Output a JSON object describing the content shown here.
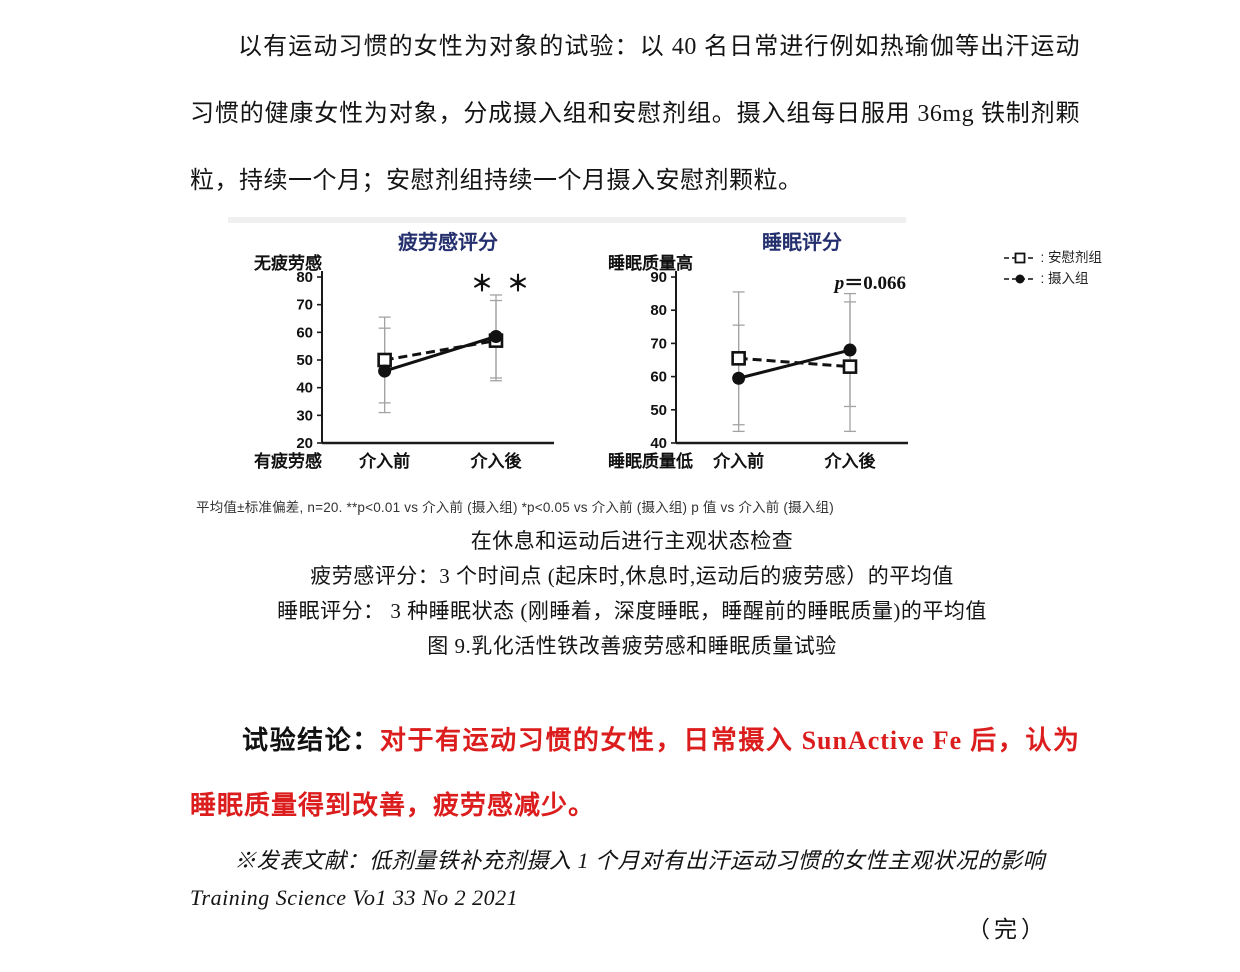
{
  "page": {
    "intro": "以有运动习惯的女性为对象的试验：以 40 名日常进行例如热瑜伽等出汗运动习惯的健康女性为对象，分成摄入组和安慰剂组。摄入组每日服用 36mg 铁制剂颗粒，持续一个月；安慰剂组持续一个月摄入安慰剂颗粒。",
    "figure": {
      "footnote": "平均值±标准偏差, n=20. **p<0.01 vs 介入前  (摄入组)   *p<0.05 vs 介入前  (摄入组)   p 值 vs 介入前  (摄入组)",
      "captions": [
        "在休息和运动后进行主观状态检查",
        "疲劳感评分：3 个时间点 (起床时,休息时,运动后的疲劳感）的平均值",
        "睡眠评分： 3 种睡眠状态 (刚睡着，深度睡眠，睡醒前的睡眠质量)的平均值",
        "图 9.乳化活性铁改善疲劳感和睡眠质量试验"
      ]
    },
    "conclusion": {
      "label": "试验结论：",
      "text": "对于有运动习惯的女性，日常摄入 SunActive Fe 后，认为睡眠质量得到改善，疲劳感减少。"
    },
    "reference": {
      "line1": "※发表文献：低剂量铁补充剂摄入 1 个月对有出汗运动习惯的女性主观状况的影响",
      "line2": "Training Science Vo1 33 No 2 2021"
    },
    "end_mark": "（完）"
  },
  "legend": {
    "entries": [
      {
        "marker": "square-open",
        "label": "安慰剂组"
      },
      {
        "marker": "circle-filled",
        "label": "摄入组"
      }
    ]
  },
  "colors": {
    "title_navy": "#242f6e",
    "conclusion_red": "#dc1d1d",
    "error_bar": "#a3a3a3",
    "axis": "#1a1a1a"
  },
  "chart_data": [
    {
      "type": "line",
      "title": "疲劳感评分",
      "y_top_label": "无疲劳感",
      "y_bottom_label": "有疲劳感",
      "ylim": [
        20,
        80
      ],
      "yticks": [
        20,
        30,
        40,
        50,
        60,
        70,
        80
      ],
      "categories": [
        "介入前",
        "介入後"
      ],
      "series": [
        {
          "name": "安慰剂组",
          "marker": "square-open",
          "line": "dashed",
          "values": [
            50,
            57
          ],
          "err_low": [
            34.5,
            42.5
          ],
          "err_high": [
            65.5,
            71.5
          ]
        },
        {
          "name": "摄入组",
          "marker": "circle-filled",
          "line": "solid",
          "values": [
            46,
            58.5
          ],
          "err_low": [
            31,
            43.5
          ],
          "err_high": [
            61.5,
            73.5
          ]
        }
      ],
      "annotation": {
        "position": "above-last-category",
        "text": "＊ ＊"
      }
    },
    {
      "type": "line",
      "title": "睡眠评分",
      "y_top_label": "睡眠质量高",
      "y_bottom_label": "睡眠质量低",
      "ylim": [
        40,
        90
      ],
      "yticks": [
        40,
        50,
        60,
        70,
        80,
        90
      ],
      "categories": [
        "介入前",
        "介入後"
      ],
      "series": [
        {
          "name": "安慰剂组",
          "marker": "square-open",
          "line": "dashed",
          "values": [
            65.5,
            63
          ],
          "err_low": [
            45.5,
            43.5
          ],
          "err_high": [
            85.5,
            82.5
          ]
        },
        {
          "name": "摄入组",
          "marker": "circle-filled",
          "line": "solid",
          "values": [
            59.5,
            68
          ],
          "err_low": [
            43.5,
            51
          ],
          "err_high": [
            75.5,
            85
          ]
        }
      ],
      "annotation": {
        "position": "top-right",
        "prefix": "p",
        "text": "＝0.066"
      }
    }
  ]
}
